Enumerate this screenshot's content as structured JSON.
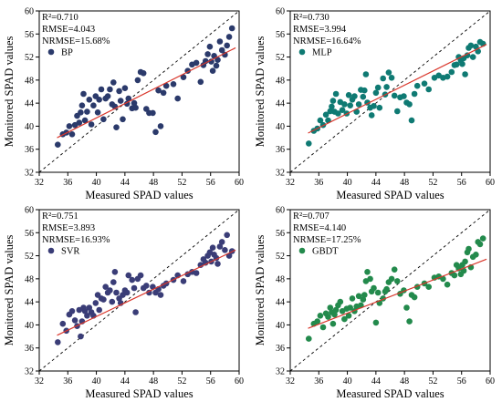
{
  "axis": {
    "xlim": [
      32,
      60
    ],
    "ylim": [
      32,
      60
    ],
    "ticks": [
      32,
      36,
      40,
      44,
      48,
      52,
      56,
      60
    ]
  },
  "chart_data": [
    {
      "type": "scatter",
      "xlabel": "Measured SPAD values",
      "ylabel": "Monitored SPAD values",
      "stats": [
        "R²=0.710",
        "RMSE=4.043",
        "NRMSE=15.68%"
      ],
      "legend": "BP",
      "color": "#2b3a6b",
      "fit_line": {
        "x": [
          34.5,
          59.5
        ],
        "y": [
          38.0,
          53.6
        ]
      },
      "points": [
        [
          34.6,
          36.8
        ],
        [
          35.3,
          38.6
        ],
        [
          35.8,
          38.9
        ],
        [
          36.2,
          40.0
        ],
        [
          36.6,
          38.6
        ],
        [
          37.0,
          40.2
        ],
        [
          37.3,
          41.8
        ],
        [
          37.6,
          40.6
        ],
        [
          37.8,
          42.4
        ],
        [
          38.0,
          43.6
        ],
        [
          38.2,
          45.6
        ],
        [
          38.4,
          41.0
        ],
        [
          38.7,
          42.5
        ],
        [
          39.0,
          44.6
        ],
        [
          39.3,
          40.3
        ],
        [
          39.6,
          43.6
        ],
        [
          39.9,
          45.2
        ],
        [
          40.2,
          42.4
        ],
        [
          40.4,
          44.6
        ],
        [
          40.7,
          46.4
        ],
        [
          41.0,
          41.2
        ],
        [
          41.3,
          44.8
        ],
        [
          41.6,
          45.2
        ],
        [
          41.9,
          46.4
        ],
        [
          42.2,
          43.8
        ],
        [
          42.4,
          47.6
        ],
        [
          42.6,
          43.4
        ],
        [
          42.8,
          39.8
        ],
        [
          43.2,
          46.1
        ],
        [
          43.4,
          44.4
        ],
        [
          43.7,
          41.2
        ],
        [
          44.0,
          46.6
        ],
        [
          44.3,
          43.9
        ],
        [
          44.5,
          44.8
        ],
        [
          45.0,
          43.1
        ],
        [
          45.3,
          44.0
        ],
        [
          45.5,
          43.2
        ],
        [
          45.8,
          48.0
        ],
        [
          46.2,
          49.4
        ],
        [
          46.6,
          49.2
        ],
        [
          47.0,
          43.0
        ],
        [
          47.4,
          42.3
        ],
        [
          47.9,
          42.3
        ],
        [
          48.3,
          39.0
        ],
        [
          48.7,
          46.2
        ],
        [
          49.0,
          40.0
        ],
        [
          49.4,
          45.8
        ],
        [
          49.8,
          47.0
        ],
        [
          50.8,
          47.3
        ],
        [
          51.4,
          44.8
        ],
        [
          52.2,
          48.5
        ],
        [
          52.8,
          49.6
        ],
        [
          53.4,
          50.7
        ],
        [
          54.0,
          51.0
        ],
        [
          54.6,
          47.7
        ],
        [
          55.0,
          50.6
        ],
        [
          55.3,
          51.3
        ],
        [
          55.6,
          52.5
        ],
        [
          55.9,
          53.8
        ],
        [
          56.1,
          51.2
        ],
        [
          56.3,
          49.6
        ],
        [
          56.5,
          52.2
        ],
        [
          56.8,
          50.5
        ],
        [
          57.0,
          51.5
        ],
        [
          57.3,
          54.7
        ],
        [
          57.6,
          53.2
        ],
        [
          58.0,
          52.4
        ],
        [
          58.3,
          54.0
        ],
        [
          58.6,
          55.5
        ],
        [
          59.0,
          57.0
        ]
      ]
    },
    {
      "type": "scatter",
      "xlabel": "Measured SPAD values",
      "ylabel": "Monitored SPAD values",
      "stats": [
        "R²=0.730",
        "RMSE=3.994",
        "NRMSE=16.64%"
      ],
      "legend": "MLP",
      "color": "#0f7a73",
      "fit_line": {
        "x": [
          34.5,
          59.5
        ],
        "y": [
          38.8,
          54.2
        ]
      },
      "points": [
        [
          34.6,
          37.0
        ],
        [
          35.3,
          39.2
        ],
        [
          35.8,
          39.6
        ],
        [
          36.2,
          41.0
        ],
        [
          36.6,
          40.2
        ],
        [
          37.0,
          42.0
        ],
        [
          37.3,
          41.0
        ],
        [
          37.6,
          42.6
        ],
        [
          37.8,
          43.4
        ],
        [
          38.0,
          44.4
        ],
        [
          38.2,
          42.5
        ],
        [
          38.4,
          45.6
        ],
        [
          38.7,
          42.2
        ],
        [
          39.0,
          44.2
        ],
        [
          39.3,
          42.8
        ],
        [
          39.6,
          43.8
        ],
        [
          39.9,
          42.2
        ],
        [
          40.2,
          45.4
        ],
        [
          40.4,
          43.6
        ],
        [
          40.7,
          44.6
        ],
        [
          41.0,
          45.2
        ],
        [
          41.3,
          42.5
        ],
        [
          41.6,
          43.8
        ],
        [
          41.9,
          46.3
        ],
        [
          42.2,
          45.1
        ],
        [
          42.4,
          46.2
        ],
        [
          42.6,
          49.0
        ],
        [
          42.8,
          44.1
        ],
        [
          43.2,
          43.2
        ],
        [
          43.4,
          41.9
        ],
        [
          43.7,
          43.5
        ],
        [
          44.0,
          45.8
        ],
        [
          44.3,
          46.7
        ],
        [
          44.5,
          43.2
        ],
        [
          45.0,
          48.3
        ],
        [
          45.3,
          45.5
        ],
        [
          45.5,
          46.8
        ],
        [
          45.8,
          49.3
        ],
        [
          46.2,
          48.4
        ],
        [
          46.6,
          45.3
        ],
        [
          47.0,
          42.6
        ],
        [
          47.4,
          45.0
        ],
        [
          47.9,
          45.2
        ],
        [
          48.3,
          44.1
        ],
        [
          48.7,
          43.8
        ],
        [
          49.0,
          41.0
        ],
        [
          49.4,
          45.6
        ],
        [
          49.8,
          47.0
        ],
        [
          50.8,
          47.4
        ],
        [
          51.4,
          46.4
        ],
        [
          52.2,
          48.4
        ],
        [
          52.8,
          48.8
        ],
        [
          53.4,
          48.4
        ],
        [
          54.0,
          48.6
        ],
        [
          54.6,
          49.4
        ],
        [
          55.0,
          50.6
        ],
        [
          55.3,
          50.7
        ],
        [
          55.6,
          52.0
        ],
        [
          55.9,
          51.4
        ],
        [
          56.1,
          50.8
        ],
        [
          56.3,
          51.8
        ],
        [
          56.5,
          49.0
        ],
        [
          56.8,
          52.3
        ],
        [
          57.0,
          53.6
        ],
        [
          57.3,
          54.0
        ],
        [
          57.6,
          52.0
        ],
        [
          58.0,
          53.8
        ],
        [
          58.3,
          53.0
        ],
        [
          58.6,
          54.6
        ],
        [
          59.0,
          54.3
        ]
      ]
    },
    {
      "type": "scatter",
      "xlabel": "Measured SPAD values",
      "ylabel": "Monitored SPAD values",
      "stats": [
        "R²=0.751",
        "RMSE=3.893",
        "NRMSE=16.93%"
      ],
      "legend": "SVR",
      "color": "#3a3d77",
      "fit_line": {
        "x": [
          34.5,
          59.5
        ],
        "y": [
          38.2,
          53.0
        ]
      },
      "points": [
        [
          34.6,
          37.0
        ],
        [
          35.3,
          40.2
        ],
        [
          35.8,
          39.0
        ],
        [
          36.2,
          41.8
        ],
        [
          36.6,
          42.4
        ],
        [
          37.0,
          40.8
        ],
        [
          37.3,
          39.8
        ],
        [
          37.6,
          42.6
        ],
        [
          37.8,
          38.0
        ],
        [
          38.0,
          40.6
        ],
        [
          38.2,
          43.0
        ],
        [
          38.4,
          42.4
        ],
        [
          38.7,
          41.6
        ],
        [
          39.0,
          43.0
        ],
        [
          39.3,
          42.2
        ],
        [
          39.6,
          41.6
        ],
        [
          39.9,
          43.8
        ],
        [
          40.2,
          45.2
        ],
        [
          40.4,
          42.6
        ],
        [
          40.7,
          44.6
        ],
        [
          41.0,
          44.4
        ],
        [
          41.3,
          46.6
        ],
        [
          41.6,
          45.6
        ],
        [
          41.9,
          46.0
        ],
        [
          42.2,
          44.0
        ],
        [
          42.4,
          47.4
        ],
        [
          42.6,
          49.2
        ],
        [
          42.8,
          45.6
        ],
        [
          43.2,
          44.6
        ],
        [
          43.4,
          43.8
        ],
        [
          43.7,
          45.2
        ],
        [
          44.0,
          46.0
        ],
        [
          44.3,
          45.6
        ],
        [
          44.5,
          48.6
        ],
        [
          45.0,
          47.8
        ],
        [
          45.3,
          46.4
        ],
        [
          45.5,
          42.2
        ],
        [
          45.8,
          48.0
        ],
        [
          46.2,
          48.6
        ],
        [
          46.6,
          46.4
        ],
        [
          47.0,
          46.8
        ],
        [
          47.4,
          45.6
        ],
        [
          47.9,
          46.6
        ],
        [
          48.3,
          45.6
        ],
        [
          48.7,
          46.2
        ],
        [
          49.0,
          45.2
        ],
        [
          49.4,
          46.8
        ],
        [
          49.8,
          47.2
        ],
        [
          50.8,
          47.8
        ],
        [
          51.4,
          48.6
        ],
        [
          52.2,
          47.6
        ],
        [
          52.8,
          48.8
        ],
        [
          53.4,
          49.2
        ],
        [
          54.0,
          49.0
        ],
        [
          54.6,
          50.4
        ],
        [
          55.0,
          51.4
        ],
        [
          55.3,
          50.8
        ],
        [
          55.6,
          52.0
        ],
        [
          55.9,
          52.6
        ],
        [
          56.1,
          51.0
        ],
        [
          56.3,
          53.4
        ],
        [
          56.5,
          52.2
        ],
        [
          56.8,
          51.6
        ],
        [
          57.0,
          50.6
        ],
        [
          57.3,
          53.6
        ],
        [
          57.6,
          54.4
        ],
        [
          58.0,
          53.0
        ],
        [
          58.3,
          55.6
        ],
        [
          58.6,
          52.0
        ],
        [
          59.0,
          52.8
        ]
      ]
    },
    {
      "type": "scatter",
      "xlabel": "Measured SPAD values",
      "ylabel": "Monitored SPAD values",
      "stats": [
        "R²=0.707",
        "RMSE=4.140",
        "NRMSE=17.25%"
      ],
      "legend": "GBDT",
      "color": "#238a4c",
      "fit_line": {
        "x": [
          34.5,
          59.5
        ],
        "y": [
          39.4,
          51.4
        ]
      },
      "points": [
        [
          34.6,
          37.6
        ],
        [
          35.3,
          40.2
        ],
        [
          35.8,
          40.6
        ],
        [
          36.2,
          41.6
        ],
        [
          36.6,
          39.6
        ],
        [
          37.0,
          42.0
        ],
        [
          37.3,
          41.4
        ],
        [
          37.6,
          43.0
        ],
        [
          37.8,
          42.2
        ],
        [
          38.0,
          40.2
        ],
        [
          38.2,
          41.8
        ],
        [
          38.4,
          42.6
        ],
        [
          38.7,
          43.4
        ],
        [
          39.0,
          44.0
        ],
        [
          39.3,
          42.4
        ],
        [
          39.6,
          41.0
        ],
        [
          39.9,
          42.8
        ],
        [
          40.2,
          41.6
        ],
        [
          40.4,
          43.0
        ],
        [
          40.7,
          44.6
        ],
        [
          41.0,
          42.4
        ],
        [
          41.3,
          43.2
        ],
        [
          41.6,
          45.0
        ],
        [
          41.9,
          43.4
        ],
        [
          42.2,
          44.4
        ],
        [
          42.4,
          45.2
        ],
        [
          42.6,
          47.6
        ],
        [
          42.8,
          49.2
        ],
        [
          43.2,
          48.0
        ],
        [
          43.4,
          45.8
        ],
        [
          43.7,
          46.4
        ],
        [
          44.0,
          40.4
        ],
        [
          44.3,
          45.6
        ],
        [
          44.5,
          43.8
        ],
        [
          45.0,
          44.6
        ],
        [
          45.3,
          45.8
        ],
        [
          45.5,
          46.2
        ],
        [
          45.8,
          47.4
        ],
        [
          46.2,
          48.0
        ],
        [
          46.6,
          49.6
        ],
        [
          47.0,
          47.6
        ],
        [
          47.4,
          45.4
        ],
        [
          47.9,
          46.0
        ],
        [
          48.3,
          43.0
        ],
        [
          48.7,
          40.6
        ],
        [
          49.0,
          45.2
        ],
        [
          49.4,
          44.8
        ],
        [
          49.8,
          46.6
        ],
        [
          50.8,
          47.2
        ],
        [
          51.4,
          46.6
        ],
        [
          52.2,
          48.2
        ],
        [
          52.8,
          48.4
        ],
        [
          53.4,
          48.0
        ],
        [
          54.0,
          47.0
        ],
        [
          54.6,
          49.0
        ],
        [
          55.0,
          48.6
        ],
        [
          55.3,
          50.4
        ],
        [
          55.6,
          49.8
        ],
        [
          55.9,
          48.8
        ],
        [
          56.1,
          50.4
        ],
        [
          56.3,
          49.4
        ],
        [
          56.5,
          51.0
        ],
        [
          56.8,
          52.6
        ],
        [
          57.0,
          53.2
        ],
        [
          57.3,
          50.0
        ],
        [
          57.6,
          51.8
        ],
        [
          58.0,
          52.2
        ],
        [
          58.3,
          54.4
        ],
        [
          58.6,
          54.0
        ],
        [
          59.0,
          55.0
        ]
      ]
    }
  ]
}
